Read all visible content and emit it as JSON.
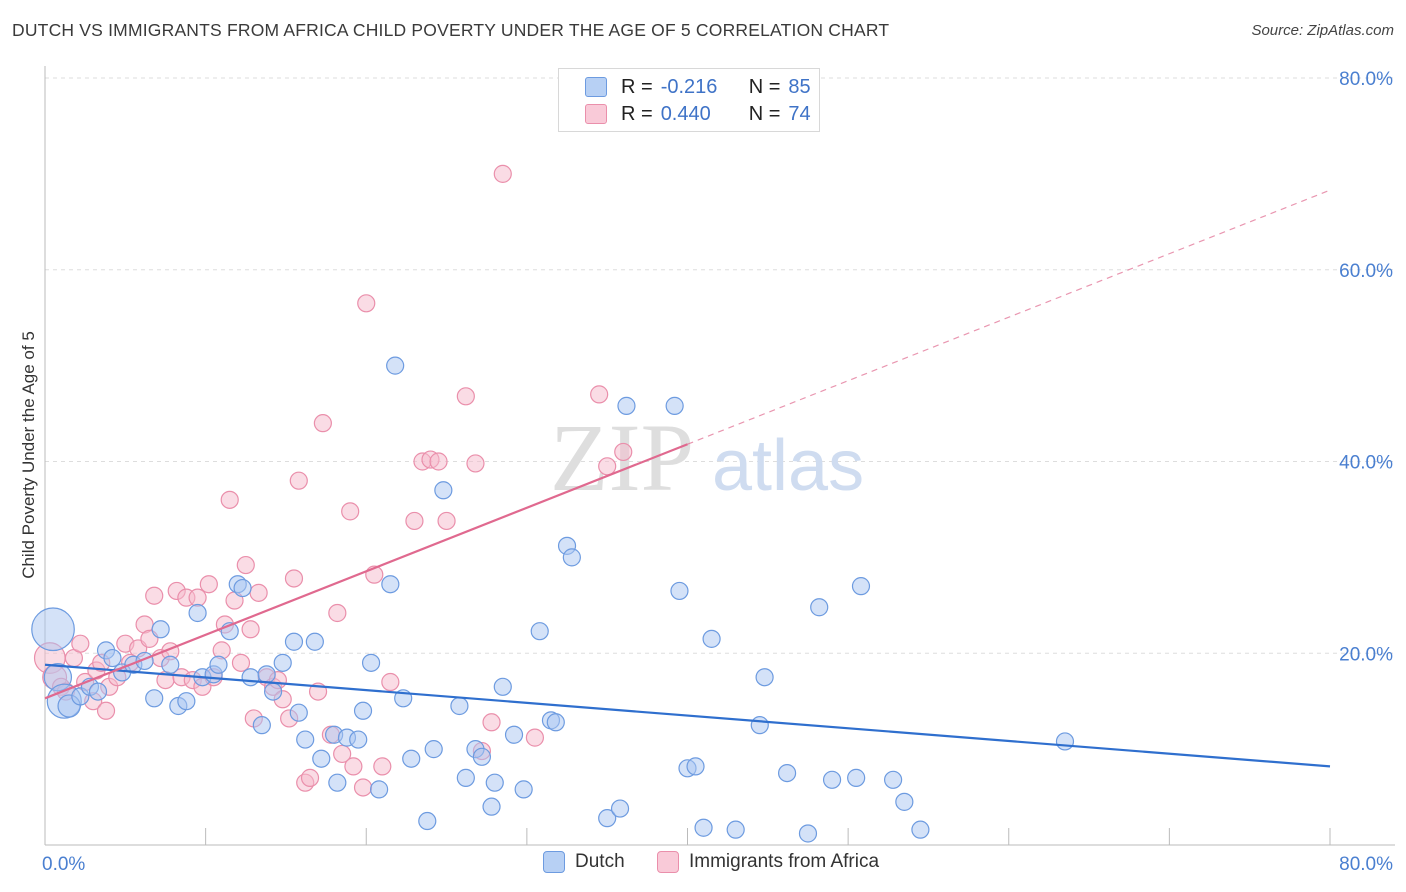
{
  "header": {
    "title": "DUTCH VS IMMIGRANTS FROM AFRICA CHILD POVERTY UNDER THE AGE OF 5 CORRELATION CHART",
    "source": "Source: ZipAtlas.com"
  },
  "legend_top": {
    "rows": [
      {
        "r_label": "R =",
        "r_value": "-0.216",
        "n_label": "N =",
        "n_value": "85"
      },
      {
        "r_label": "R =",
        "r_value": "0.440",
        "n_label": "N =",
        "n_value": "74"
      }
    ]
  },
  "legend_bottom": {
    "items": [
      "Dutch",
      "Immigrants from Africa"
    ]
  },
  "watermark": {
    "zip": "ZIP",
    "atlas": "atlas"
  },
  "colors": {
    "dutch_fill": "#a9c6f2",
    "dutch_stroke": "#6d9be0",
    "dutch_line": "#2f6fce",
    "africa_fill": "#f6b9cb",
    "africa_stroke": "#ea8fab",
    "africa_line": "#e0698f",
    "tick_label": "#4a7fd0",
    "grid": "#dddddd"
  },
  "chart_data": {
    "type": "scatter",
    "title": "DUTCH VS IMMIGRANTS FROM AFRICA CHILD POVERTY UNDER THE AGE OF 5 CORRELATION CHART",
    "xlabel": "",
    "ylabel": "Child Poverty Under the Age of 5",
    "xlim": [
      0,
      80
    ],
    "ylim": [
      0,
      80
    ],
    "x_tick_labels": [
      "0.0%",
      "80.0%"
    ],
    "y_tick_labels": [
      "20.0%",
      "40.0%",
      "60.0%",
      "80.0%"
    ],
    "y_ticks": [
      20,
      40,
      60,
      80
    ],
    "grid": true,
    "legend_placement": "top-center",
    "series": [
      {
        "name": "Dutch",
        "stats": {
          "R": -0.216,
          "N": 85
        },
        "trend": {
          "x0": 0,
          "y0": 18.8,
          "x1": 80,
          "y1": 8.2
        },
        "points": [
          [
            0.5,
            22.5,
            2.5
          ],
          [
            0.8,
            17.5,
            1.6
          ],
          [
            1.2,
            15,
            2
          ],
          [
            1.5,
            14.5,
            1.3
          ],
          [
            2.2,
            15.5,
            1
          ],
          [
            2.8,
            16.5,
            1
          ],
          [
            3.3,
            16,
            1
          ],
          [
            3.8,
            20.3,
            1
          ],
          [
            4.2,
            19.5,
            1
          ],
          [
            4.8,
            18,
            1
          ],
          [
            5.5,
            18.8,
            1
          ],
          [
            6.2,
            19.2,
            1
          ],
          [
            6.8,
            15.3,
            1
          ],
          [
            7.2,
            22.5,
            1
          ],
          [
            7.8,
            18.8,
            1
          ],
          [
            8.3,
            14.5,
            1
          ],
          [
            8.8,
            15,
            1
          ],
          [
            9.5,
            24.2,
            1
          ],
          [
            9.8,
            17.5,
            1
          ],
          [
            10.5,
            17.8,
            1
          ],
          [
            10.8,
            18.8,
            1
          ],
          [
            11.5,
            22.3,
            1
          ],
          [
            12,
            27.2,
            1
          ],
          [
            12.3,
            26.8,
            1
          ],
          [
            12.8,
            17.5,
            1
          ],
          [
            13.5,
            12.5,
            1
          ],
          [
            13.8,
            17.8,
            1
          ],
          [
            14.2,
            16,
            1
          ],
          [
            14.8,
            19,
            1
          ],
          [
            15.5,
            21.2,
            1
          ],
          [
            15.8,
            13.8,
            1
          ],
          [
            16.2,
            11,
            1
          ],
          [
            16.8,
            21.2,
            1
          ],
          [
            17.2,
            9,
            1
          ],
          [
            18,
            11.5,
            1
          ],
          [
            18.2,
            6.5,
            1
          ],
          [
            18.8,
            11.2,
            1
          ],
          [
            19.5,
            11,
            1
          ],
          [
            19.8,
            14,
            1
          ],
          [
            20.3,
            19,
            1
          ],
          [
            20.8,
            5.8,
            1
          ],
          [
            21.5,
            27.2,
            1
          ],
          [
            21.8,
            50,
            1
          ],
          [
            22.3,
            15.3,
            1
          ],
          [
            22.8,
            9,
            1
          ],
          [
            23.8,
            2.5,
            1
          ],
          [
            24.2,
            10,
            1
          ],
          [
            24.8,
            37,
            1
          ],
          [
            25.8,
            14.5,
            1
          ],
          [
            26.2,
            7,
            1
          ],
          [
            26.8,
            10,
            1
          ],
          [
            27.2,
            9.2,
            1
          ],
          [
            27.8,
            4,
            1
          ],
          [
            28,
            6.5,
            1
          ],
          [
            28.5,
            16.5,
            1
          ],
          [
            29.2,
            11.5,
            1
          ],
          [
            29.8,
            5.8,
            1
          ],
          [
            30.8,
            22.3,
            1
          ],
          [
            31.5,
            13,
            1
          ],
          [
            31.8,
            12.8,
            1
          ],
          [
            32.5,
            31.2,
            1
          ],
          [
            32.8,
            30,
            1
          ],
          [
            35,
            2.8,
            1
          ],
          [
            35.8,
            3.8,
            1
          ],
          [
            36.2,
            45.8,
            1
          ],
          [
            39.2,
            45.8,
            1
          ],
          [
            39.5,
            26.5,
            1
          ],
          [
            40,
            8,
            1
          ],
          [
            40.5,
            8.2,
            1
          ],
          [
            41,
            1.8,
            1
          ],
          [
            41.5,
            21.5,
            1
          ],
          [
            43,
            1.6,
            1
          ],
          [
            44.5,
            12.5,
            1
          ],
          [
            44.8,
            17.5,
            1
          ],
          [
            46.2,
            7.5,
            1
          ],
          [
            47.5,
            1.2,
            1
          ],
          [
            48.2,
            24.8,
            1
          ],
          [
            49,
            6.8,
            1
          ],
          [
            50.5,
            7,
            1
          ],
          [
            50.8,
            27,
            1
          ],
          [
            52.8,
            6.8,
            1
          ],
          [
            53.5,
            4.5,
            1
          ],
          [
            54.5,
            1.6,
            1
          ],
          [
            63.5,
            10.8,
            1
          ]
        ]
      },
      {
        "name": "Immigrants from Africa",
        "stats": {
          "R": 0.44,
          "N": 74
        },
        "trend_solid": {
          "x0": 0,
          "y0": 15.3,
          "x1": 40,
          "y1": 41.8
        },
        "trend_dashed": {
          "x0": 40,
          "y0": 41.8,
          "x1": 80,
          "y1": 68.3
        },
        "points": [
          [
            0.3,
            19.5,
            1.8
          ],
          [
            0.6,
            17.5,
            1.4
          ],
          [
            1,
            16.5,
            1
          ],
          [
            1.3,
            16,
            1
          ],
          [
            1.8,
            19.5,
            1
          ],
          [
            2.2,
            21,
            1
          ],
          [
            2.5,
            17,
            1
          ],
          [
            3,
            15,
            1
          ],
          [
            3.2,
            18.2,
            1
          ],
          [
            3.5,
            19,
            1
          ],
          [
            3.8,
            14,
            1
          ],
          [
            4,
            16.5,
            1
          ],
          [
            4.5,
            17.5,
            1
          ],
          [
            5,
            21,
            1
          ],
          [
            5.3,
            19,
            1
          ],
          [
            5.8,
            20.5,
            1
          ],
          [
            6.2,
            23,
            1
          ],
          [
            6.5,
            21.5,
            1
          ],
          [
            6.8,
            26,
            1
          ],
          [
            7.2,
            19.5,
            1
          ],
          [
            7.5,
            17.2,
            1
          ],
          [
            7.8,
            20.2,
            1
          ],
          [
            8.2,
            26.5,
            1
          ],
          [
            8.5,
            17.5,
            1
          ],
          [
            8.8,
            25.8,
            1
          ],
          [
            9.2,
            17.2,
            1
          ],
          [
            9.5,
            25.8,
            1
          ],
          [
            9.8,
            16.5,
            1
          ],
          [
            10.2,
            27.2,
            1
          ],
          [
            10.5,
            17.5,
            1
          ],
          [
            11,
            20.3,
            1
          ],
          [
            11.2,
            23,
            1
          ],
          [
            11.5,
            36,
            1
          ],
          [
            11.8,
            25.5,
            1
          ],
          [
            12.2,
            19,
            1
          ],
          [
            12.5,
            29.2,
            1
          ],
          [
            12.8,
            22.5,
            1
          ],
          [
            13,
            13.2,
            1
          ],
          [
            13.3,
            26.3,
            1
          ],
          [
            13.8,
            17.5,
            1
          ],
          [
            14.2,
            16.5,
            1
          ],
          [
            14.5,
            17.2,
            1
          ],
          [
            14.8,
            15.2,
            1
          ],
          [
            15.2,
            13.2,
            1
          ],
          [
            15.5,
            27.8,
            1
          ],
          [
            15.8,
            38,
            1
          ],
          [
            16.2,
            6.5,
            1
          ],
          [
            16.5,
            7,
            1
          ],
          [
            17,
            16,
            1
          ],
          [
            17.3,
            44,
            1
          ],
          [
            17.8,
            11.5,
            1
          ],
          [
            18.2,
            24.2,
            1
          ],
          [
            18.5,
            9.5,
            1
          ],
          [
            19,
            34.8,
            1
          ],
          [
            19.2,
            8.2,
            1
          ],
          [
            19.8,
            6,
            1
          ],
          [
            20,
            56.5,
            1
          ],
          [
            20.5,
            28.2,
            1
          ],
          [
            21,
            8.2,
            1
          ],
          [
            21.5,
            17,
            1
          ],
          [
            23,
            33.8,
            1
          ],
          [
            23.5,
            40,
            1
          ],
          [
            24,
            40.2,
            1
          ],
          [
            24.5,
            40,
            1
          ],
          [
            25,
            33.8,
            1
          ],
          [
            26.2,
            46.8,
            1
          ],
          [
            26.8,
            39.8,
            1
          ],
          [
            27.2,
            9.8,
            1
          ],
          [
            27.8,
            12.8,
            1
          ],
          [
            28.5,
            70,
            1
          ],
          [
            30.5,
            11.2,
            1
          ],
          [
            34.5,
            47,
            1
          ],
          [
            35,
            39.5,
            1
          ],
          [
            36,
            41,
            1
          ]
        ]
      }
    ]
  }
}
